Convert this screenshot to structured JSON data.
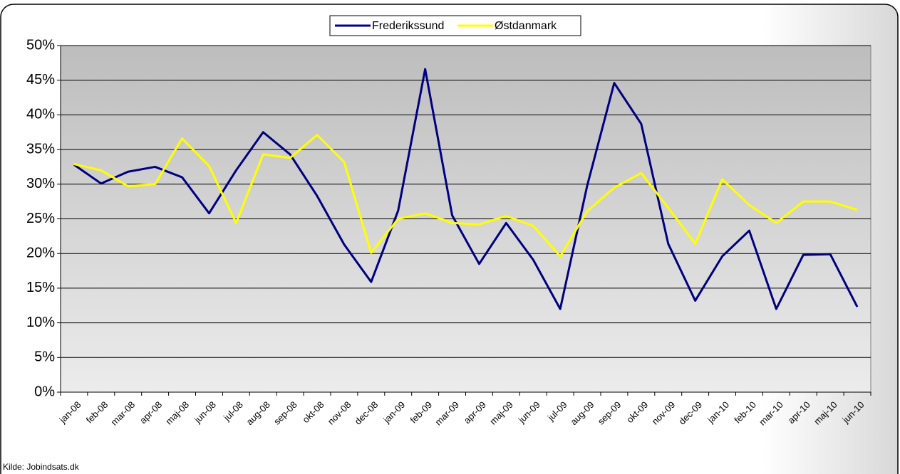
{
  "chart_data": {
    "type": "line",
    "categories": [
      "jan-08",
      "feb-08",
      "mar-08",
      "apr-08",
      "maj-08",
      "jun-08",
      "jul-08",
      "aug-08",
      "sep-08",
      "okt-08",
      "nov-08",
      "dec-08",
      "jan-09",
      "feb-09",
      "mar-09",
      "apr-09",
      "maj-09",
      "jun-09",
      "jul-09",
      "aug-09",
      "sep-09",
      "okt-09",
      "nov-09",
      "dec-09",
      "jan-10",
      "feb-10",
      "mar-10",
      "apr-10",
      "maj-10",
      "jun-10"
    ],
    "series": [
      {
        "name": "Frederikssund",
        "color": "#000080",
        "values": [
          32.8,
          30.1,
          31.8,
          32.5,
          31.0,
          25.8,
          32.0,
          37.5,
          34.3,
          28.3,
          21.3,
          15.9,
          26.2,
          46.6,
          25.5,
          18.5,
          24.4,
          19.1,
          12.0,
          29.8,
          44.6,
          38.7,
          21.4,
          13.2,
          19.6,
          23.3,
          12.0,
          19.8,
          19.9,
          12.3
        ]
      },
      {
        "name": "Østdanmark",
        "color": "#ffff00",
        "values": [
          32.9,
          32.0,
          29.7,
          30.0,
          36.6,
          32.6,
          24.4,
          34.3,
          33.8,
          37.1,
          33.2,
          20.1,
          25.0,
          25.8,
          24.4,
          24.2,
          25.4,
          24.0,
          19.6,
          26.1,
          29.5,
          31.6,
          26.6,
          21.4,
          30.7,
          27.0,
          24.4,
          27.5,
          27.5,
          26.3
        ]
      }
    ],
    "ylim": [
      0,
      50
    ],
    "yticks": [
      {
        "value": 0,
        "label": "0%"
      },
      {
        "value": 5,
        "label": "5%"
      },
      {
        "value": 10,
        "label": "10%"
      },
      {
        "value": 15,
        "label": "15%"
      },
      {
        "value": 20,
        "label": "20%"
      },
      {
        "value": 25,
        "label": "25%"
      },
      {
        "value": 30,
        "label": "30%"
      },
      {
        "value": 35,
        "label": "35%"
      },
      {
        "value": 40,
        "label": "40%"
      },
      {
        "value": 45,
        "label": "45%"
      },
      {
        "value": 50,
        "label": "50%"
      }
    ],
    "grid": true,
    "legend": "top",
    "source": "Kilde: Jobindsats.dk"
  }
}
